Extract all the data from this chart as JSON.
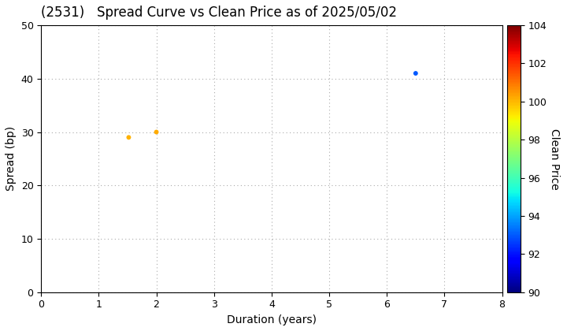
{
  "title": "(2531)   Spread Curve vs Clean Price as of 2025/05/02",
  "xlabel": "Duration (years)",
  "ylabel": "Spread (bp)",
  "colorbar_label": "Clean Price",
  "xlim": [
    0,
    8
  ],
  "ylim": [
    0,
    50
  ],
  "xticks": [
    0,
    1,
    2,
    3,
    4,
    5,
    6,
    7,
    8
  ],
  "yticks": [
    0,
    10,
    20,
    30,
    40,
    50
  ],
  "colorbar_min": 90,
  "colorbar_max": 104,
  "colorbar_ticks": [
    90,
    92,
    94,
    96,
    98,
    100,
    102,
    104
  ],
  "points": [
    {
      "duration": 1.52,
      "spread": 29,
      "price": 100.1
    },
    {
      "duration": 2.0,
      "spread": 30,
      "price": 100.2
    },
    {
      "duration": 6.5,
      "spread": 41,
      "price": 93.0
    }
  ],
  "marker_size": 18,
  "background_color": "#ffffff",
  "grid_color": "#aaaaaa",
  "title_fontsize": 12,
  "axis_fontsize": 10,
  "colorbar_fontsize": 9
}
